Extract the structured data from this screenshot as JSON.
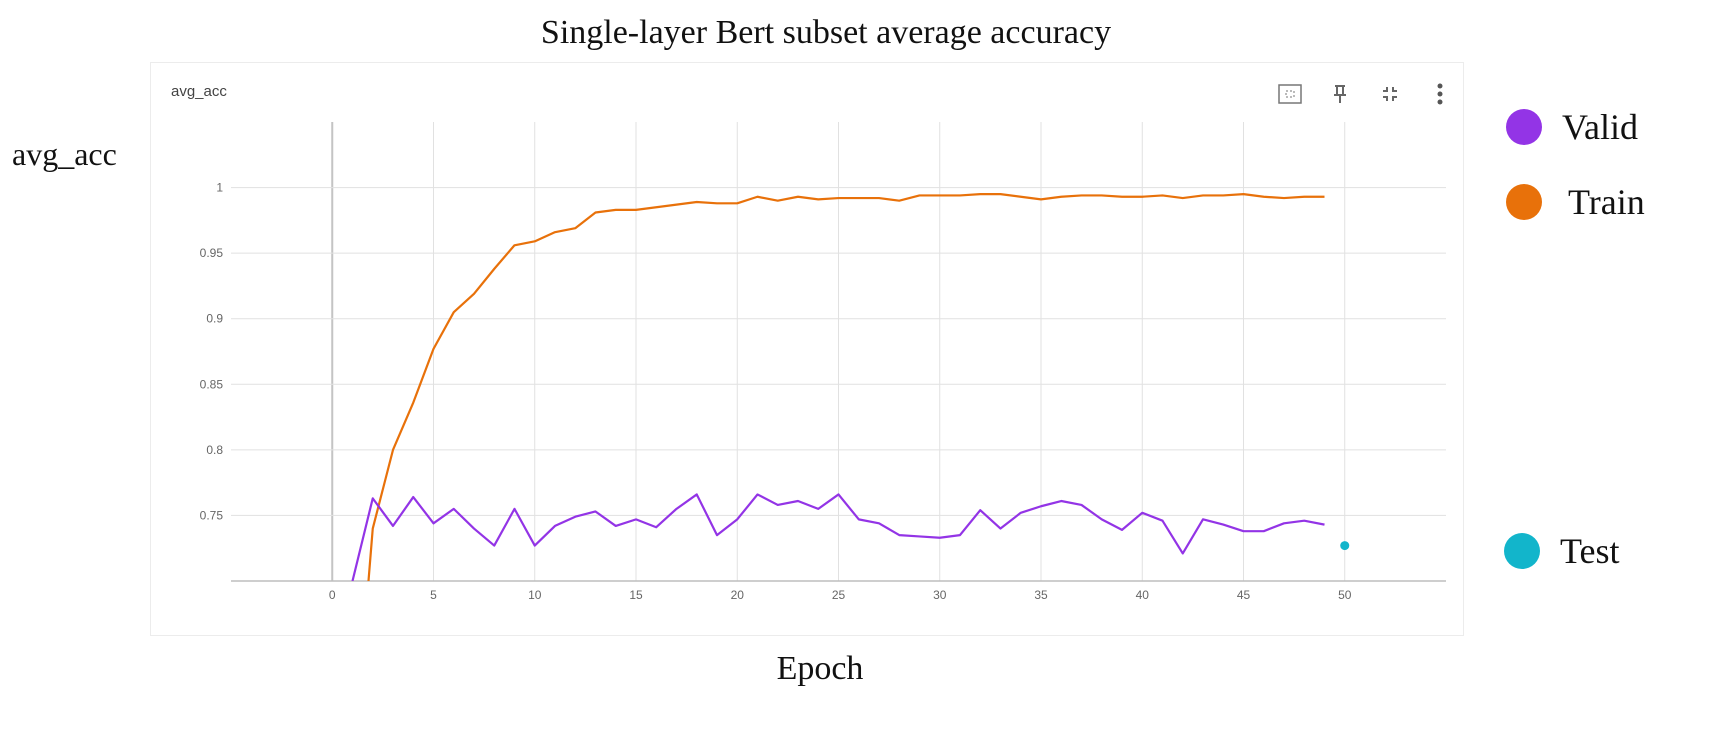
{
  "title": "Single-layer Bert subset average accuracy",
  "ylabel_side": "avg_acc",
  "xlabel_bottom": "Epoch",
  "card": {
    "name": "avg_acc",
    "toolbar": [
      {
        "icon": "fit-domain-icon"
      },
      {
        "icon": "pin-icon"
      },
      {
        "icon": "collapse-icon"
      },
      {
        "icon": "more-options-icon"
      }
    ]
  },
  "legend": [
    {
      "label": "Valid",
      "color": "#9334e6"
    },
    {
      "label": "Train",
      "color": "#e8710a"
    },
    {
      "label": "Test",
      "color": "#12b5cb"
    }
  ],
  "chart_data": {
    "type": "line",
    "title": "Single-layer Bert subset average accuracy",
    "xlabel": "Epoch",
    "ylabel": "avg_acc",
    "xlim": [
      -5,
      55
    ],
    "ylim": [
      0.7,
      1.05
    ],
    "xticks": [
      0,
      5,
      10,
      15,
      20,
      25,
      30,
      35,
      40,
      45,
      50
    ],
    "yticks": [
      0.75,
      0.8,
      0.85,
      0.9,
      0.95,
      1
    ],
    "ytick_labels": [
      "0.75",
      "0.8",
      "0.85",
      "0.9",
      "0.95",
      "1"
    ],
    "xtick_labels": [
      "0",
      "5",
      "10",
      "15",
      "20",
      "25",
      "30",
      "35",
      "40",
      "45",
      "50"
    ],
    "grid": true,
    "legend_position": "right",
    "series": [
      {
        "name": "Train",
        "color": "#e8710a",
        "x": [
          1,
          2,
          3,
          4,
          5,
          6,
          7,
          8,
          9,
          10,
          11,
          12,
          13,
          14,
          15,
          16,
          17,
          18,
          19,
          20,
          21,
          22,
          23,
          24,
          25,
          26,
          27,
          28,
          29,
          30,
          31,
          32,
          33,
          34,
          35,
          36,
          37,
          38,
          39,
          40,
          41,
          42,
          43,
          44,
          45,
          46,
          47,
          48,
          49
        ],
        "values": [
          0.55,
          0.74,
          0.8,
          0.836,
          0.877,
          0.905,
          0.919,
          0.938,
          0.956,
          0.959,
          0.966,
          0.969,
          0.981,
          0.983,
          0.983,
          0.985,
          0.987,
          0.989,
          0.988,
          0.988,
          0.993,
          0.99,
          0.993,
          0.991,
          0.992,
          0.992,
          0.992,
          0.99,
          0.994,
          0.994,
          0.994,
          0.995,
          0.995,
          0.993,
          0.991,
          0.993,
          0.994,
          0.994,
          0.993,
          0.993,
          0.994,
          0.992,
          0.994,
          0.994,
          0.995,
          0.993,
          0.992,
          0.993,
          0.993
        ]
      },
      {
        "name": "Valid",
        "color": "#9334e6",
        "x": [
          1,
          2,
          3,
          4,
          5,
          6,
          7,
          8,
          9,
          10,
          11,
          12,
          13,
          14,
          15,
          16,
          17,
          18,
          19,
          20,
          21,
          22,
          23,
          24,
          25,
          26,
          27,
          28,
          29,
          30,
          31,
          32,
          33,
          34,
          35,
          36,
          37,
          38,
          39,
          40,
          41,
          42,
          43,
          44,
          45,
          46,
          47,
          48,
          49
        ],
        "values": [
          0.7,
          0.763,
          0.742,
          0.764,
          0.744,
          0.755,
          0.74,
          0.727,
          0.755,
          0.727,
          0.742,
          0.749,
          0.753,
          0.742,
          0.747,
          0.741,
          0.755,
          0.766,
          0.735,
          0.747,
          0.766,
          0.758,
          0.761,
          0.755,
          0.766,
          0.747,
          0.744,
          0.735,
          0.734,
          0.733,
          0.735,
          0.754,
          0.74,
          0.752,
          0.757,
          0.761,
          0.758,
          0.747,
          0.739,
          0.752,
          0.746,
          0.721,
          0.747,
          0.743,
          0.738,
          0.738,
          0.744,
          0.746,
          0.743
        ]
      },
      {
        "name": "Test",
        "color": "#12b5cb",
        "x": [
          50
        ],
        "values": [
          0.727
        ]
      }
    ]
  }
}
